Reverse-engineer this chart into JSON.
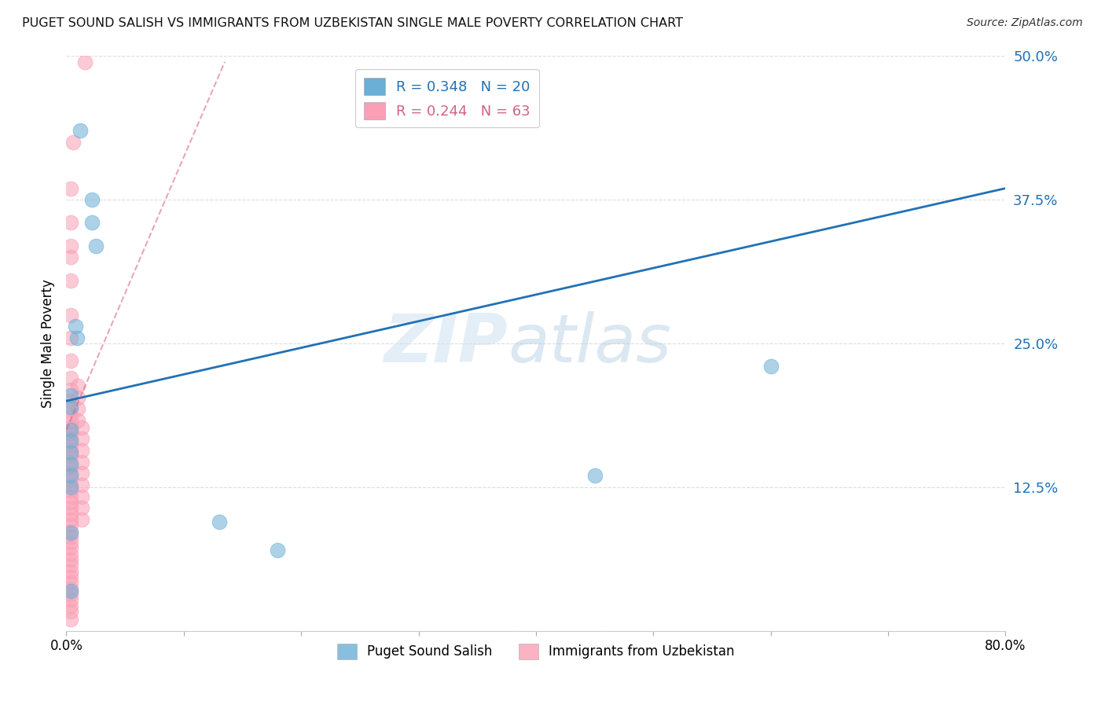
{
  "title": "PUGET SOUND SALISH VS IMMIGRANTS FROM UZBEKISTAN SINGLE MALE POVERTY CORRELATION CHART",
  "source": "Source: ZipAtlas.com",
  "ylabel": "Single Male Poverty",
  "xlim": [
    0,
    0.8
  ],
  "ylim": [
    0,
    0.5
  ],
  "yticks": [
    0,
    0.125,
    0.25,
    0.375,
    0.5
  ],
  "ytick_labels": [
    "",
    "12.5%",
    "25.0%",
    "37.5%",
    "50.0%"
  ],
  "xticks": [
    0,
    0.1,
    0.2,
    0.3,
    0.4,
    0.5,
    0.6,
    0.7,
    0.8
  ],
  "xtick_labels": [
    "0.0%",
    "",
    "",
    "",
    "",
    "",
    "",
    "",
    "80.0%"
  ],
  "legend_r_blue": "R = 0.348",
  "legend_n_blue": "N = 20",
  "legend_r_pink": "R = 0.244",
  "legend_n_pink": "N = 63",
  "blue_color": "#6baed6",
  "pink_color": "#fa9fb5",
  "blue_line_color": "#2171b5",
  "pink_line_color": "#d46080",
  "watermark_zip": "ZIP",
  "watermark_atlas": "atlas",
  "background_color": "#ffffff",
  "blue_scatter_x": [
    0.012,
    0.022,
    0.022,
    0.025,
    0.008,
    0.009,
    0.004,
    0.004,
    0.004,
    0.004,
    0.004,
    0.004,
    0.004,
    0.004,
    0.13,
    0.18,
    0.6,
    0.45,
    0.004,
    0.004
  ],
  "blue_scatter_y": [
    0.435,
    0.375,
    0.355,
    0.335,
    0.265,
    0.255,
    0.205,
    0.195,
    0.175,
    0.165,
    0.155,
    0.145,
    0.135,
    0.125,
    0.095,
    0.07,
    0.23,
    0.135,
    0.085,
    0.035
  ],
  "pink_scatter_x": [
    0.016,
    0.006,
    0.004,
    0.004,
    0.004,
    0.004,
    0.004,
    0.004,
    0.004,
    0.004,
    0.004,
    0.004,
    0.004,
    0.004,
    0.004,
    0.004,
    0.004,
    0.004,
    0.004,
    0.004,
    0.004,
    0.004,
    0.004,
    0.004,
    0.004,
    0.004,
    0.004,
    0.004,
    0.004,
    0.004,
    0.004,
    0.004,
    0.004,
    0.004,
    0.004,
    0.004,
    0.004,
    0.004,
    0.004,
    0.004,
    0.004,
    0.004,
    0.004,
    0.004,
    0.004,
    0.004,
    0.004,
    0.004,
    0.004,
    0.004,
    0.01,
    0.01,
    0.01,
    0.01,
    0.013,
    0.013,
    0.013,
    0.013,
    0.013,
    0.013,
    0.013,
    0.013,
    0.013
  ],
  "pink_scatter_y": [
    0.495,
    0.425,
    0.385,
    0.355,
    0.335,
    0.325,
    0.305,
    0.275,
    0.255,
    0.235,
    0.22,
    0.21,
    0.2,
    0.193,
    0.187,
    0.182,
    0.177,
    0.172,
    0.167,
    0.162,
    0.157,
    0.152,
    0.147,
    0.142,
    0.137,
    0.132,
    0.127,
    0.122,
    0.117,
    0.112,
    0.107,
    0.102,
    0.097,
    0.092,
    0.087,
    0.082,
    0.077,
    0.072,
    0.067,
    0.062,
    0.057,
    0.052,
    0.047,
    0.042,
    0.037,
    0.032,
    0.027,
    0.022,
    0.017,
    0.01,
    0.213,
    0.203,
    0.193,
    0.183,
    0.177,
    0.167,
    0.157,
    0.147,
    0.137,
    0.127,
    0.117,
    0.107,
    0.097
  ],
  "blue_line_x": [
    0.0,
    0.8
  ],
  "blue_line_y": [
    0.2,
    0.385
  ],
  "pink_line_x": [
    0.0,
    0.135
  ],
  "pink_line_y": [
    0.175,
    0.495
  ]
}
